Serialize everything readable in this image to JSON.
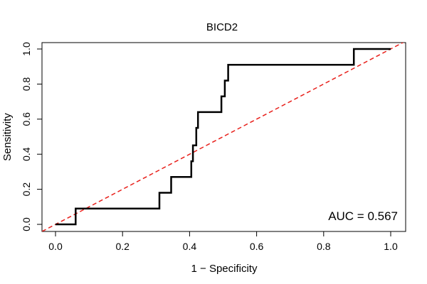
{
  "chart_data": {
    "type": "line",
    "title": "BICD2",
    "xlabel": "1 − Specificity",
    "ylabel": "Sensitivity",
    "xlim": [
      0,
      1
    ],
    "ylim": [
      0,
      1
    ],
    "xticks": [
      0,
      0.2,
      0.4,
      0.6,
      0.8,
      1
    ],
    "xtick_labels": [
      "0.0",
      "0.2",
      "0.4",
      "0.6",
      "0.8",
      "1.0"
    ],
    "yticks": [
      0,
      0.2,
      0.4,
      0.6,
      0.8,
      1
    ],
    "ytick_labels": [
      "0.0",
      "0.2",
      "0.4",
      "0.6",
      "0.8",
      "1.0"
    ],
    "grid": false,
    "series": [
      {
        "name": "ROC curve",
        "color": "#000000",
        "style": "solid",
        "x": [
          0,
          0.06,
          0.06,
          0.31,
          0.31,
          0.345,
          0.345,
          0.405,
          0.405,
          0.41,
          0.41,
          0.42,
          0.42,
          0.425,
          0.425,
          0.495,
          0.495,
          0.505,
          0.505,
          0.515,
          0.515,
          0.89,
          0.89,
          1
        ],
        "y": [
          0,
          0,
          0.09,
          0.09,
          0.18,
          0.18,
          0.27,
          0.27,
          0.36,
          0.36,
          0.45,
          0.45,
          0.55,
          0.55,
          0.64,
          0.64,
          0.73,
          0.73,
          0.82,
          0.82,
          0.91,
          0.91,
          1.0,
          1.0
        ]
      },
      {
        "name": "Reference diagonal",
        "color": "#e8201b",
        "style": "dashed",
        "x": [
          -0.04,
          1.04
        ],
        "y": [
          -0.04,
          1.04
        ]
      }
    ],
    "annotation": "AUC = 0.567"
  }
}
